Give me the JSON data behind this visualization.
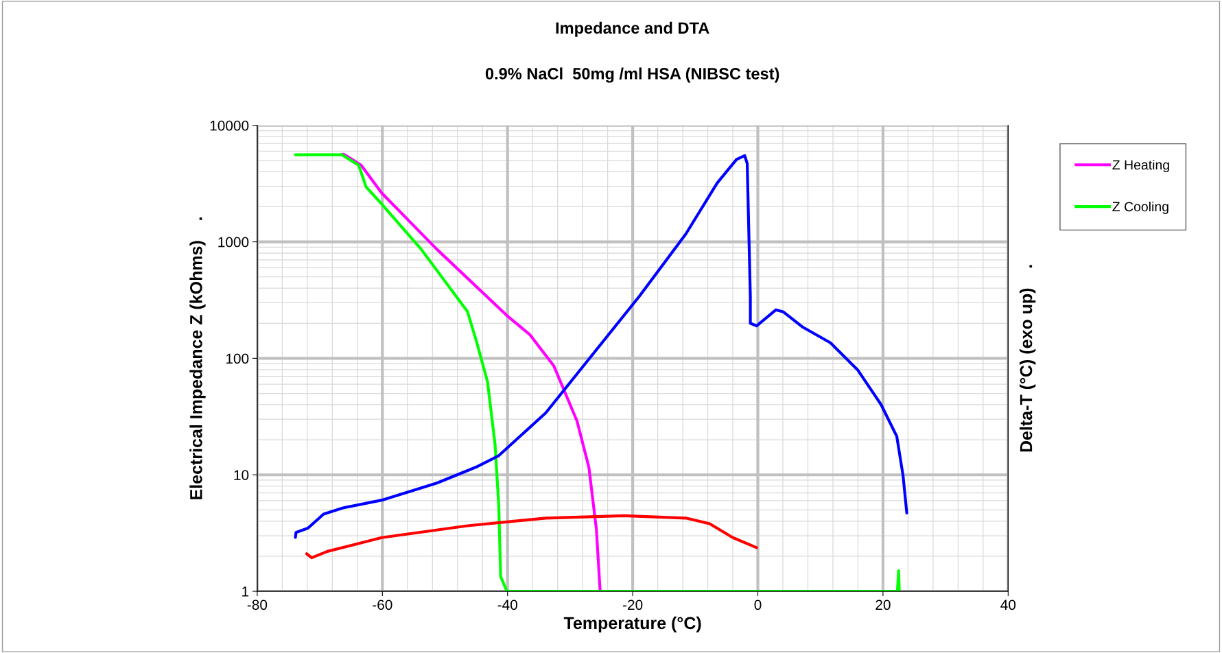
{
  "chart_data": {
    "type": "line",
    "title": "Impedance and DTA",
    "subtitle": "0.9% NaCl  50mg /ml HSA (NIBSC test)",
    "xlabel": "Temperature (°C)",
    "ylabel": "Electrical Impedance Z (kOhms)    .",
    "y2label": "Delta-T (°C) (exo up)    .",
    "log": "y",
    "xlim": [
      -80,
      40
    ],
    "xticks": [
      -80,
      -60,
      -40,
      -20,
      0,
      20,
      40
    ],
    "ylim": [
      1,
      10000
    ],
    "yticks": [
      1,
      10,
      100,
      1000,
      10000
    ],
    "grid": true,
    "legend": "top right",
    "marker": "none",
    "line_style": "solid",
    "series": [
      {
        "name": "Z Heating",
        "color": "#ff00ff",
        "x": [
          -66.5,
          -66.2,
          -63.4,
          -60.1,
          -51.3,
          -40.1,
          -36.4,
          -32.6,
          -28.9,
          -27.0,
          -25.8,
          -25.2
        ],
        "values": [
          5600,
          5660,
          4560,
          2620,
          864,
          233,
          159,
          86,
          29,
          11.6,
          3.4,
          1.0
        ]
      },
      {
        "name": "Z Cooling",
        "color": "#00ff00",
        "x": [
          -73.9,
          -66.5,
          -63.8,
          -62.6,
          -60.1,
          -53.8,
          -46.4,
          -44.9,
          -43.2,
          -42.0,
          -41.4,
          -41.1,
          -40.1,
          22.3,
          22.5,
          22.6
        ],
        "values": [
          5600,
          5600,
          4560,
          2960,
          2110,
          864,
          252,
          136,
          63,
          18.4,
          5.4,
          1.34,
          1.0,
          1.0,
          1.5,
          1.0
        ]
      },
      {
        "color": "#0000ff",
        "x": [
          -73.9,
          -73.8,
          -71.9,
          -69.4,
          -66.3,
          -60.1,
          -51.3,
          -45.1,
          -41.4,
          -33.9,
          -26.4,
          -18.9,
          -11.5,
          -6.5,
          -3.4,
          -2.1,
          -1.7,
          -1.2,
          -1.2,
          -0.2,
          2.9,
          4.1,
          7.2,
          11.6,
          16.0,
          19.7,
          22.2,
          23.2,
          23.8
        ],
        "values": [
          2.9,
          3.2,
          3.48,
          4.6,
          5.2,
          6.06,
          8.5,
          11.6,
          14.6,
          34,
          108,
          343,
          1170,
          3200,
          5100,
          5500,
          4700,
          343,
          200,
          190,
          261,
          250,
          185,
          136,
          79,
          40,
          21.4,
          9.9,
          4.7
        ]
      },
      {
        "color": "#ff0000",
        "x": [
          -72.1,
          -71.3,
          -68.8,
          -60.1,
          -46.4,
          -33.9,
          -21.4,
          -11.5,
          -7.7,
          -4.0,
          -0.2
        ],
        "values": [
          2.1,
          1.94,
          2.2,
          2.89,
          3.65,
          4.25,
          4.45,
          4.25,
          3.8,
          2.89,
          2.37
        ]
      }
    ]
  }
}
